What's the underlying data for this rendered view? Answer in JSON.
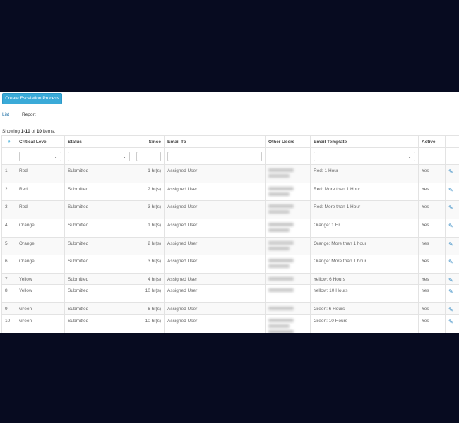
{
  "toolbar": {
    "create_label": "Create Escalation Process"
  },
  "tabs": [
    {
      "label": "List",
      "active": true
    },
    {
      "label": "Report",
      "active": false
    }
  ],
  "summary": {
    "prefix": "Showing ",
    "range": "1-10",
    "mid": " of ",
    "total": "10",
    "suffix": " items."
  },
  "columns": [
    "#",
    "Critical Level",
    "Status",
    "Since",
    "Email To",
    "Other Users",
    "Email Template",
    "Active"
  ],
  "rows": [
    {
      "num": "1",
      "level": "Red",
      "status": "Submitted",
      "since": "1 hr(s)",
      "email_to": "Assigned User",
      "template": "Red: 1 Hour",
      "active": "Yes"
    },
    {
      "num": "2",
      "level": "Red",
      "status": "Submitted",
      "since": "2 hr(s)",
      "email_to": "Assigned User",
      "template": "Red: More than 1 Hour",
      "active": "Yes"
    },
    {
      "num": "3",
      "level": "Red",
      "status": "Submitted",
      "since": "3 hr(s)",
      "email_to": "Assigned User",
      "template": "Red: More than 1 Hour",
      "active": "Yes"
    },
    {
      "num": "4",
      "level": "Orange",
      "status": "Submitted",
      "since": "1 hr(s)",
      "email_to": "Assigned User",
      "template": "Orange: 1 Hr",
      "active": "Yes"
    },
    {
      "num": "5",
      "level": "Orange",
      "status": "Submitted",
      "since": "2 hr(s)",
      "email_to": "Assigned User",
      "template": "Orange: More than 1 hour",
      "active": "Yes"
    },
    {
      "num": "6",
      "level": "Orange",
      "status": "Submitted",
      "since": "3 hr(s)",
      "email_to": "Assigned User",
      "template": "Orange: More than 1 hour",
      "active": "Yes"
    },
    {
      "num": "7",
      "level": "Yellow",
      "status": "Submitted",
      "since": "4 hr(s)",
      "email_to": "Assigned User",
      "template": "Yellow: 6 Hours",
      "active": "Yes"
    },
    {
      "num": "8",
      "level": "Yellow",
      "status": "Submitted",
      "since": "10 hr(s)",
      "email_to": "Assigned User",
      "template": "Yellow: 10 Hours",
      "active": "Yes"
    },
    {
      "num": "9",
      "level": "Green",
      "status": "Submitted",
      "since": "6 hr(s)",
      "email_to": "Assigned User",
      "template": "Green: 6 Hours",
      "active": "Yes"
    },
    {
      "num": "10",
      "level": "Green",
      "status": "Submitted",
      "since": "10 hr(s)",
      "email_to": "Assigned User",
      "template": "Green: 10 Hours",
      "active": "Yes"
    }
  ],
  "colors": {
    "accent": "#3aaad8",
    "link": "#1d6fa5",
    "background": "#070b20"
  },
  "icons": {
    "edit": "pencil-icon",
    "dropdown": "chevron-down-icon"
  }
}
